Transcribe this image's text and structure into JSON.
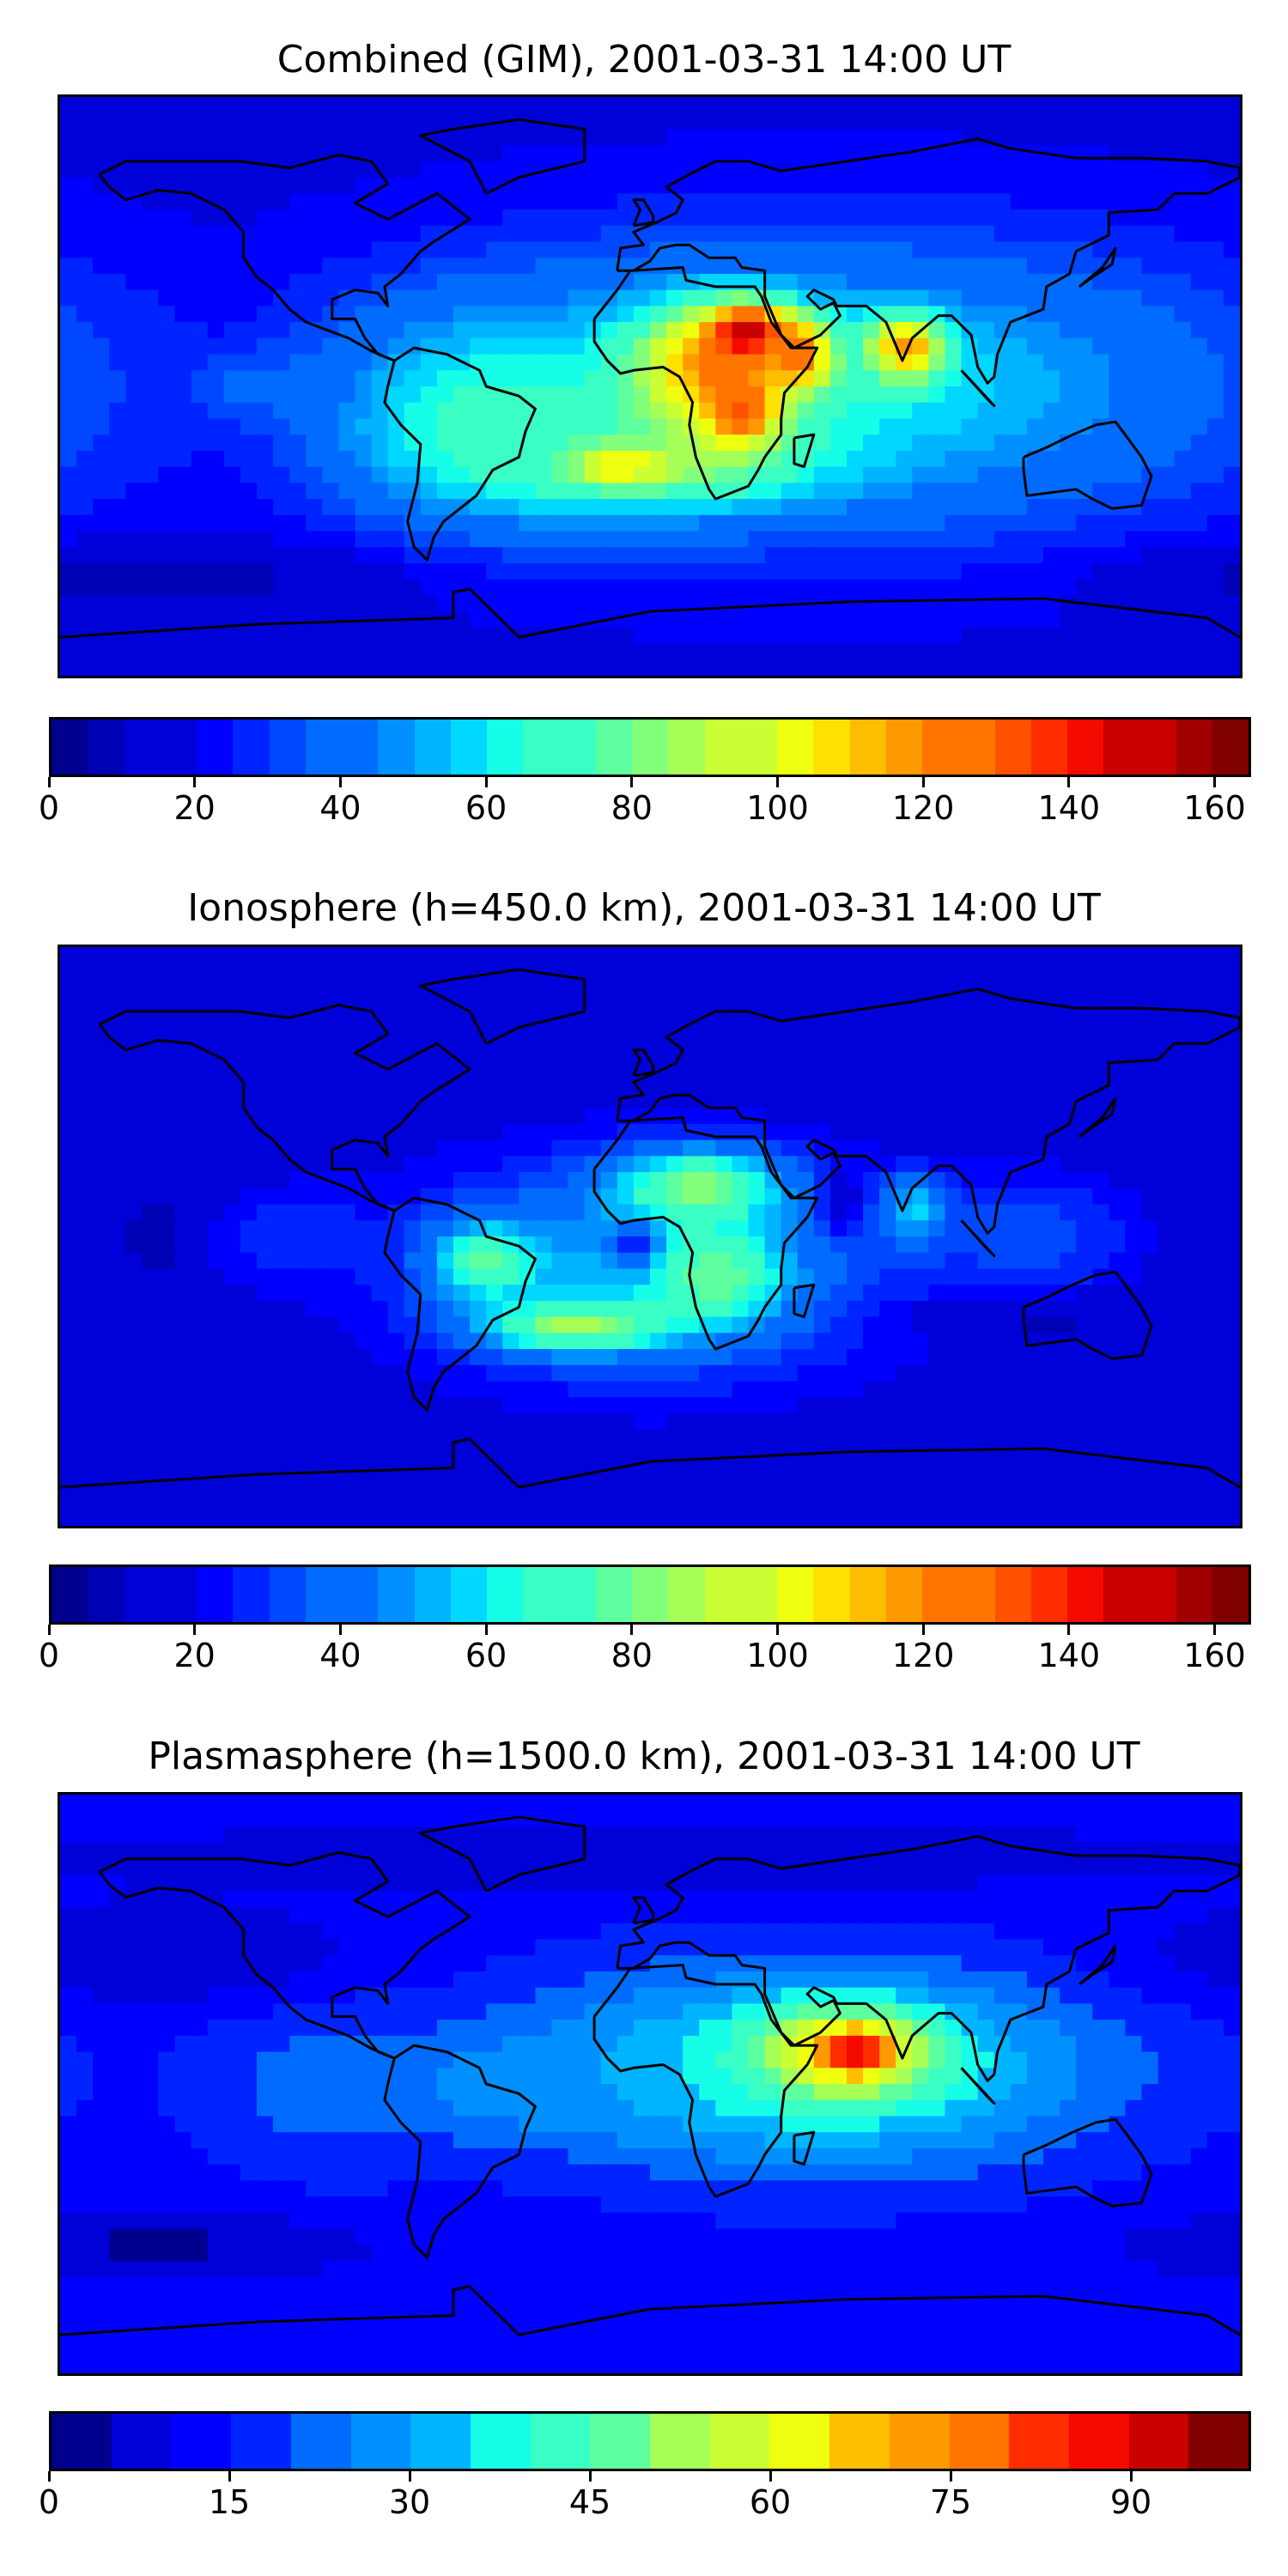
{
  "colors": {
    "jet": [
      "#00008f",
      "#0000b4",
      "#0000d9",
      "#0000ff",
      "#0024ff",
      "#0048ff",
      "#006cff",
      "#0090ff",
      "#00b4ff",
      "#00d8ff",
      "#16fee8",
      "#3affc4",
      "#5eff9f",
      "#82ff7b",
      "#a6ff57",
      "#caff33",
      "#eeff10",
      "#ffe100",
      "#ffbd00",
      "#ff9900",
      "#ff7500",
      "#ff5100",
      "#ff2d00",
      "#f50a00",
      "#c90000",
      "#a00000",
      "#800000"
    ],
    "coast": "#000000"
  },
  "chart_data": [
    {
      "type": "heatmap",
      "title": "Combined (GIM), 2001-03-31 14:00 UT",
      "xlabel": "",
      "ylabel": "",
      "colorbar": {
        "min": 0,
        "max": 165,
        "levels": 33,
        "ticks": [
          "0",
          "20",
          "40",
          "60",
          "80",
          "100",
          "120",
          "140",
          "160"
        ],
        "tick_values": [
          0,
          20,
          40,
          60,
          80,
          100,
          120,
          140,
          160
        ]
      },
      "background_value": 18,
      "features": [
        {
          "lon": 50,
          "lat": 0,
          "rlon": 130,
          "rlat": 45,
          "value": 62
        },
        {
          "lon": -50,
          "lat": -10,
          "rlon": 45,
          "rlat": 30,
          "value": 68
        },
        {
          "lon": 0,
          "lat": -25,
          "rlon": 50,
          "rlat": 14,
          "value": 82
        },
        {
          "lon": 20,
          "lat": 5,
          "rlon": 25,
          "rlat": 20,
          "value": 120
        },
        {
          "lon": 30,
          "lat": 17,
          "rlon": 12,
          "rlat": 8,
          "value": 155
        },
        {
          "lon": 28,
          "lat": -8,
          "rlon": 10,
          "rlat": 10,
          "value": 135
        },
        {
          "lon": 45,
          "lat": 10,
          "rlon": 10,
          "rlat": 10,
          "value": 130
        },
        {
          "lon": 78,
          "lat": 12,
          "rlon": 12,
          "rlat": 10,
          "value": 120
        },
        {
          "lon": -8,
          "lat": -25,
          "rlon": 12,
          "rlat": 5,
          "value": 110
        },
        {
          "lon": -120,
          "lat": 0,
          "rlon": 20,
          "rlat": 10,
          "value": 38
        },
        {
          "lon": -150,
          "lat": -60,
          "rlon": 60,
          "rlat": 10,
          "value": 5
        }
      ]
    },
    {
      "type": "heatmap",
      "title": "Ionosphere  (h=450.0 km), 2001-03-31 14:00 UT",
      "xlabel": "",
      "ylabel": "",
      "colorbar": {
        "min": 0,
        "max": 165,
        "levels": 33,
        "ticks": [
          "0",
          "20",
          "40",
          "60",
          "80",
          "100",
          "120",
          "140",
          "160"
        ],
        "tick_values": [
          0,
          20,
          40,
          60,
          80,
          100,
          120,
          140,
          160
        ]
      },
      "background_value": 14,
      "features": [
        {
          "lon": 0,
          "lat": -10,
          "rlon": 75,
          "rlat": 35,
          "value": 52
        },
        {
          "lon": 15,
          "lat": 15,
          "rlon": 25,
          "rlat": 12,
          "value": 85
        },
        {
          "lon": 20,
          "lat": -12,
          "rlon": 20,
          "rlat": 14,
          "value": 80
        },
        {
          "lon": -50,
          "lat": -8,
          "rlon": 16,
          "rlat": 12,
          "value": 78
        },
        {
          "lon": -22,
          "lat": -28,
          "rlon": 28,
          "rlat": 8,
          "value": 88
        },
        {
          "lon": -5,
          "lat": -3,
          "rlon": 7,
          "rlat": 7,
          "value": 22
        },
        {
          "lon": 82,
          "lat": 8,
          "rlon": 10,
          "rlat": 10,
          "value": 68
        },
        {
          "lon": 58,
          "lat": 10,
          "rlon": 6,
          "rlat": 9,
          "value": 10
        },
        {
          "lon": 115,
          "lat": 0,
          "rlon": 35,
          "rlat": 20,
          "value": 34
        },
        {
          "lon": -110,
          "lat": 0,
          "rlon": 25,
          "rlat": 15,
          "value": 30
        },
        {
          "lon": -150,
          "lat": 0,
          "rlon": 10,
          "rlat": 15,
          "value": 6
        },
        {
          "lon": 120,
          "lat": -25,
          "rlon": 40,
          "rlat": 6,
          "value": 8
        }
      ]
    },
    {
      "type": "heatmap",
      "title": "Plasmasphere (h=1500.0 km), 2001-03-31 14:00 UT",
      "xlabel": "",
      "ylabel": "",
      "colorbar": {
        "min": 0,
        "max": 100,
        "levels": 20,
        "ticks": [
          "0",
          "15",
          "30",
          "45",
          "60",
          "75",
          "90"
        ],
        "tick_values": [
          0,
          15,
          30,
          45,
          60,
          75,
          90
        ]
      },
      "background_value": 12,
      "features": [
        {
          "lon": 50,
          "lat": 5,
          "rlon": 90,
          "rlat": 32,
          "value": 42
        },
        {
          "lon": 60,
          "lat": 10,
          "rlon": 25,
          "rlat": 14,
          "value": 68
        },
        {
          "lon": 63,
          "lat": 10,
          "rlon": 10,
          "rlat": 6,
          "value": 90
        },
        {
          "lon": -40,
          "lat": 0,
          "rlon": 50,
          "rlat": 15,
          "value": 30
        },
        {
          "lon": -100,
          "lat": 0,
          "rlon": 40,
          "rlat": 30,
          "value": 22
        },
        {
          "lon": -150,
          "lat": 40,
          "rlon": 60,
          "rlat": 15,
          "value": 5
        },
        {
          "lon": -150,
          "lat": -50,
          "rlon": 60,
          "rlat": 10,
          "value": 4
        },
        {
          "lon": 0,
          "lat": 70,
          "rlon": 180,
          "rlat": 10,
          "value": 6
        }
      ]
    }
  ]
}
